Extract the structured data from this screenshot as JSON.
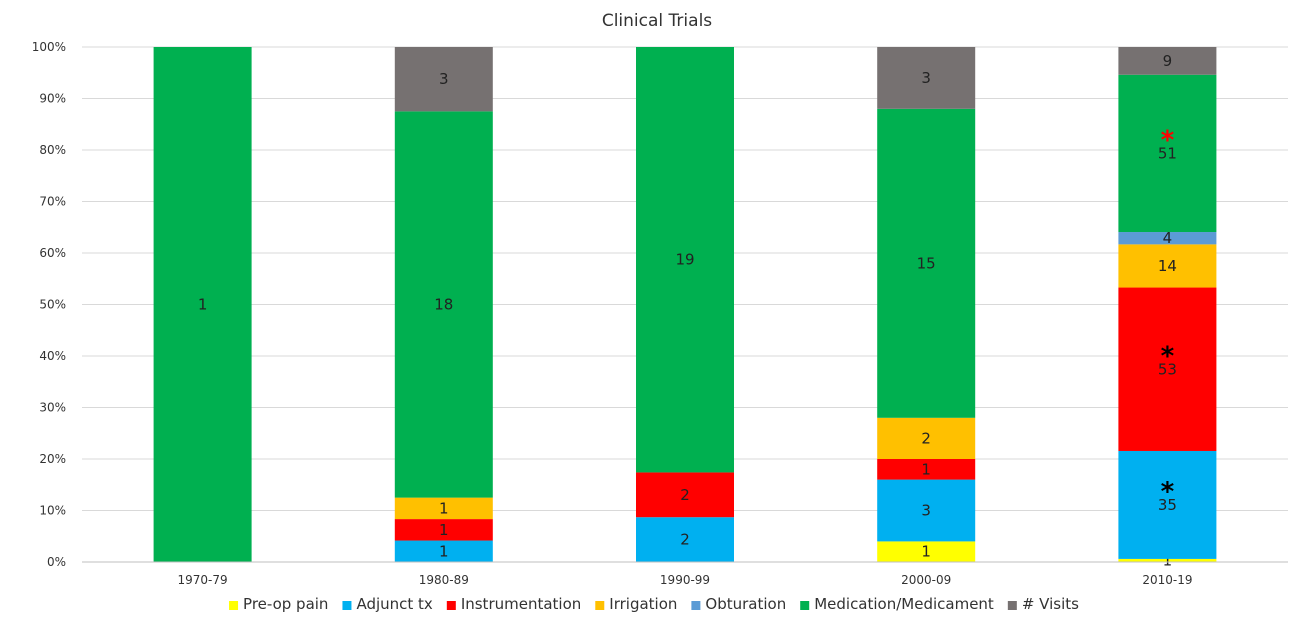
{
  "chart_data": {
    "type": "bar",
    "stacked": "percent",
    "title": "Clinical Trials",
    "categories": [
      "1970-79",
      "1980-89",
      "1990-99",
      "2000-09",
      "2010-19"
    ],
    "ylim": [
      0,
      100
    ],
    "yticks": [
      "0%",
      "10%",
      "20%",
      "30%",
      "40%",
      "50%",
      "60%",
      "70%",
      "80%",
      "90%",
      "100%"
    ],
    "grid": true,
    "legend_position": "bottom",
    "series": [
      {
        "name": "Pre-op pain",
        "color": "#ffff00",
        "values": [
          0,
          0,
          0,
          1,
          1
        ]
      },
      {
        "name": "Adjunct tx",
        "color": "#00b0f0",
        "values": [
          0,
          1,
          2,
          3,
          35
        ]
      },
      {
        "name": "Instrumentation",
        "color": "#ff0000",
        "values": [
          0,
          1,
          2,
          1,
          53
        ]
      },
      {
        "name": "Irrigation",
        "color": "#ffc000",
        "values": [
          0,
          1,
          0,
          2,
          14
        ]
      },
      {
        "name": "Obturation",
        "color": "#5b9bd5",
        "values": [
          0,
          0,
          0,
          0,
          4
        ]
      },
      {
        "name": "Medication/Medicament",
        "color": "#00b050",
        "values": [
          1,
          18,
          19,
          15,
          51
        ]
      },
      {
        "name": "# Visits",
        "color": "#767171",
        "values": [
          0,
          3,
          0,
          3,
          9
        ]
      }
    ],
    "annotations": [
      {
        "category": "2010-19",
        "series": "Adjunct tx",
        "text": "*",
        "color": "#000000"
      },
      {
        "category": "2010-19",
        "series": "Instrumentation",
        "text": "*",
        "color": "#000000"
      },
      {
        "category": "2010-19",
        "series": "Medication/Medicament",
        "text": "*",
        "color": "#ff0000"
      }
    ]
  }
}
